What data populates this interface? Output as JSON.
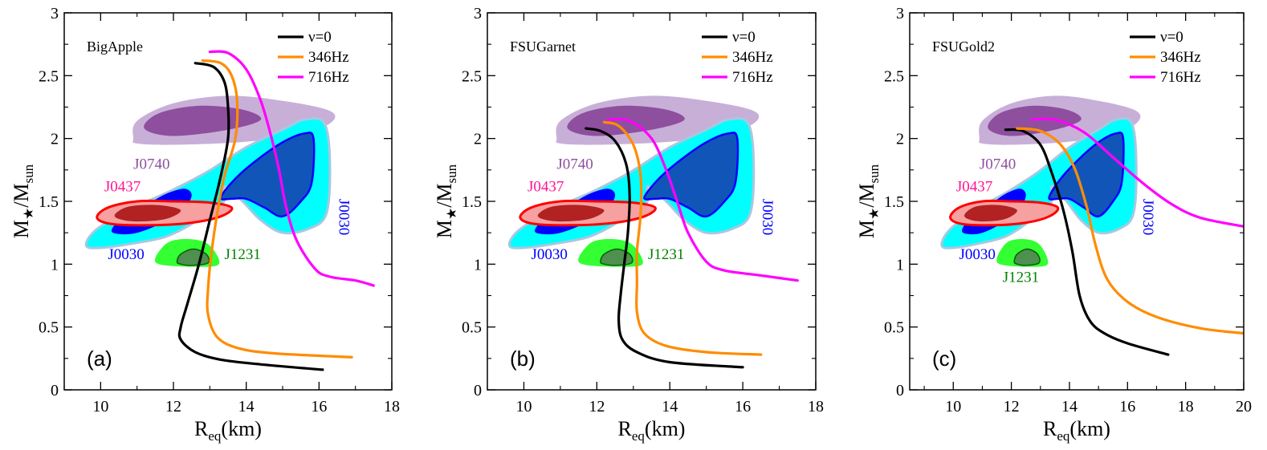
{
  "chart_data": [
    {
      "type": "line",
      "panel_label": "(a)",
      "model": "BigApple",
      "xlabel": "R_eq(km)",
      "ylabel": "M_star/M_sun",
      "xlim": [
        9,
        18
      ],
      "ylim": [
        0,
        3
      ],
      "xticks": [
        10,
        12,
        14,
        16,
        18
      ],
      "yticks": [
        0,
        0.5,
        1,
        1.5,
        2,
        2.5,
        3
      ],
      "legend": [
        "ν=0",
        "346Hz",
        "716Hz"
      ],
      "series": [
        {
          "name": "ν=0",
          "color": "#000000",
          "points": [
            [
              12.6,
              2.6
            ],
            [
              13.1,
              2.57
            ],
            [
              13.4,
              2.45
            ],
            [
              13.5,
              2.25
            ],
            [
              13.5,
              2.0
            ],
            [
              13.3,
              1.7
            ],
            [
              13.0,
              1.35
            ],
            [
              12.7,
              1.0
            ],
            [
              12.4,
              0.7
            ],
            [
              12.2,
              0.5
            ],
            [
              12.2,
              0.4
            ],
            [
              12.6,
              0.3
            ],
            [
              13.3,
              0.24
            ],
            [
              14.5,
              0.2
            ],
            [
              16.1,
              0.16
            ]
          ]
        },
        {
          "name": "346Hz",
          "color": "#ff8c00",
          "points": [
            [
              12.8,
              2.62
            ],
            [
              13.3,
              2.6
            ],
            [
              13.6,
              2.5
            ],
            [
              13.75,
              2.3
            ],
            [
              13.7,
              2.0
            ],
            [
              13.4,
              1.7
            ],
            [
              13.2,
              1.4
            ],
            [
              13.05,
              1.1
            ],
            [
              12.95,
              0.8
            ],
            [
              12.95,
              0.6
            ],
            [
              13.2,
              0.42
            ],
            [
              13.8,
              0.33
            ],
            [
              14.8,
              0.29
            ],
            [
              16.9,
              0.26
            ]
          ]
        },
        {
          "name": "716Hz",
          "color": "#ff00ff",
          "points": [
            [
              13.0,
              2.69
            ],
            [
              13.5,
              2.68
            ],
            [
              14.0,
              2.55
            ],
            [
              14.4,
              2.3
            ],
            [
              14.7,
              2.0
            ],
            [
              14.9,
              1.75
            ],
            [
              15.1,
              1.45
            ],
            [
              15.4,
              1.18
            ],
            [
              15.9,
              0.96
            ],
            [
              16.3,
              0.9
            ],
            [
              17.0,
              0.87
            ],
            [
              17.5,
              0.83
            ]
          ]
        }
      ]
    },
    {
      "type": "line",
      "panel_label": "(b)",
      "model": "FSUGarnet",
      "xlabel": "R_eq(km)",
      "ylabel": "M_star/M_sun",
      "xlim": [
        9,
        18
      ],
      "ylim": [
        0,
        3
      ],
      "xticks": [
        10,
        12,
        14,
        16,
        18
      ],
      "yticks": [
        0,
        0.5,
        1,
        1.5,
        2,
        2.5,
        3
      ],
      "legend": [
        "ν=0",
        "346Hz",
        "716Hz"
      ],
      "series": [
        {
          "name": "ν=0",
          "color": "#000000",
          "points": [
            [
              11.7,
              2.08
            ],
            [
              12.1,
              2.06
            ],
            [
              12.5,
              1.98
            ],
            [
              12.8,
              1.8
            ],
            [
              12.9,
              1.55
            ],
            [
              12.85,
              1.25
            ],
            [
              12.75,
              1.0
            ],
            [
              12.65,
              0.75
            ],
            [
              12.6,
              0.55
            ],
            [
              12.7,
              0.4
            ],
            [
              13.1,
              0.3
            ],
            [
              14.0,
              0.22
            ],
            [
              16.0,
              0.18
            ]
          ]
        },
        {
          "name": "346Hz",
          "color": "#ff8c00",
          "points": [
            [
              12.2,
              2.13
            ],
            [
              12.6,
              2.1
            ],
            [
              13.0,
              1.95
            ],
            [
              13.2,
              1.7
            ],
            [
              13.2,
              1.4
            ],
            [
              13.1,
              1.1
            ],
            [
              13.1,
              0.85
            ],
            [
              13.1,
              0.62
            ],
            [
              13.3,
              0.45
            ],
            [
              13.9,
              0.35
            ],
            [
              15.0,
              0.3
            ],
            [
              16.5,
              0.28
            ]
          ]
        },
        {
          "name": "716Hz",
          "color": "#ff00ff",
          "points": [
            [
              12.3,
              2.15
            ],
            [
              12.9,
              2.14
            ],
            [
              13.5,
              2.0
            ],
            [
              13.9,
              1.75
            ],
            [
              14.2,
              1.5
            ],
            [
              14.5,
              1.25
            ],
            [
              15.0,
              1.02
            ],
            [
              15.5,
              0.95
            ],
            [
              16.5,
              0.91
            ],
            [
              17.5,
              0.87
            ]
          ]
        }
      ]
    },
    {
      "type": "line",
      "panel_label": "(c)",
      "model": "FSUGold2",
      "xlabel": "R_eq(km)",
      "ylabel": "M_star/M_sun",
      "xlim": [
        8.5,
        20
      ],
      "ylim": [
        0,
        3
      ],
      "xticks": [
        10,
        12,
        14,
        16,
        18,
        20
      ],
      "yticks": [
        0,
        0.5,
        1,
        1.5,
        2,
        2.5,
        3
      ],
      "legend": [
        "ν=0",
        "346Hz",
        "716Hz"
      ],
      "series": [
        {
          "name": "ν=0",
          "color": "#000000",
          "points": [
            [
              11.8,
              2.07
            ],
            [
              12.4,
              2.06
            ],
            [
              13.0,
              1.95
            ],
            [
              13.4,
              1.72
            ],
            [
              13.8,
              1.42
            ],
            [
              14.1,
              1.1
            ],
            [
              14.35,
              0.75
            ],
            [
              14.7,
              0.55
            ],
            [
              15.2,
              0.45
            ],
            [
              16.0,
              0.37
            ],
            [
              17.4,
              0.28
            ]
          ]
        },
        {
          "name": "346Hz",
          "color": "#ff8c00",
          "points": [
            [
              12.2,
              2.08
            ],
            [
              13.0,
              2.06
            ],
            [
              13.7,
              1.95
            ],
            [
              14.2,
              1.75
            ],
            [
              14.6,
              1.45
            ],
            [
              14.9,
              1.15
            ],
            [
              15.3,
              0.88
            ],
            [
              16.0,
              0.7
            ],
            [
              17.0,
              0.58
            ],
            [
              18.5,
              0.49
            ],
            [
              20.0,
              0.45
            ]
          ]
        },
        {
          "name": "716Hz",
          "color": "#ff00ff",
          "points": [
            [
              12.7,
              2.15
            ],
            [
              13.5,
              2.15
            ],
            [
              14.5,
              2.05
            ],
            [
              15.5,
              1.85
            ],
            [
              16.5,
              1.65
            ],
            [
              17.5,
              1.48
            ],
            [
              18.5,
              1.37
            ],
            [
              20.0,
              1.3
            ]
          ]
        }
      ]
    }
  ],
  "constraints": {
    "j0740": {
      "label": "J0740",
      "outer": [
        [
          10.9,
          2.0
        ],
        [
          11.0,
          2.14
        ],
        [
          12.0,
          2.28
        ],
        [
          13.5,
          2.34
        ],
        [
          15.0,
          2.3
        ],
        [
          16.3,
          2.22
        ],
        [
          16.3,
          2.12
        ],
        [
          15.3,
          2.02
        ],
        [
          13.8,
          1.97
        ],
        [
          12.0,
          1.95
        ],
        [
          11.0,
          1.96
        ]
      ],
      "inner": [
        [
          11.2,
          2.08
        ],
        [
          11.6,
          2.2
        ],
        [
          12.7,
          2.26
        ],
        [
          13.9,
          2.23
        ],
        [
          14.4,
          2.15
        ],
        [
          13.5,
          2.07
        ],
        [
          12.0,
          2.02
        ]
      ]
    },
    "j0030_cyan": [
      [
        9.6,
        1.15
      ],
      [
        9.9,
        1.28
      ],
      [
        10.9,
        1.45
      ],
      [
        11.9,
        1.58
      ],
      [
        12.9,
        1.73
      ],
      [
        14.0,
        1.93
      ],
      [
        15.0,
        2.07
      ],
      [
        15.6,
        2.15
      ],
      [
        16.15,
        2.12
      ],
      [
        16.3,
        1.8
      ],
      [
        16.2,
        1.4
      ],
      [
        15.7,
        1.28
      ],
      [
        15.0,
        1.25
      ],
      [
        14.4,
        1.35
      ],
      [
        13.9,
        1.5
      ],
      [
        13.4,
        1.62
      ],
      [
        13.35,
        1.48
      ],
      [
        12.5,
        1.32
      ],
      [
        11.8,
        1.22
      ],
      [
        11.0,
        1.17
      ],
      [
        10.0,
        1.13
      ]
    ],
    "j0030_blue_lower": [
      [
        10.3,
        1.27
      ],
      [
        10.6,
        1.37
      ],
      [
        11.3,
        1.48
      ],
      [
        11.8,
        1.56
      ],
      [
        12.3,
        1.6
      ],
      [
        12.5,
        1.55
      ],
      [
        12.3,
        1.45
      ],
      [
        11.7,
        1.33
      ],
      [
        11.0,
        1.25
      ],
      [
        10.5,
        1.24
      ]
    ],
    "j0030_blue_upper": [
      [
        13.3,
        1.53
      ],
      [
        13.7,
        1.68
      ],
      [
        14.3,
        1.83
      ],
      [
        15.0,
        1.97
      ],
      [
        15.6,
        2.04
      ],
      [
        15.85,
        2.0
      ],
      [
        15.8,
        1.65
      ],
      [
        15.5,
        1.5
      ],
      [
        15.0,
        1.38
      ],
      [
        14.5,
        1.45
      ],
      [
        14.0,
        1.52
      ],
      [
        13.6,
        1.52
      ]
    ],
    "j0030_label": "J0030",
    "j0437": {
      "label": "J0437",
      "outer": [
        [
          9.9,
          1.37
        ],
        [
          10.2,
          1.45
        ],
        [
          11.0,
          1.5
        ],
        [
          12.0,
          1.5
        ],
        [
          13.0,
          1.49
        ],
        [
          13.6,
          1.45
        ],
        [
          13.3,
          1.38
        ],
        [
          12.5,
          1.33
        ],
        [
          11.4,
          1.31
        ],
        [
          10.3,
          1.32
        ]
      ],
      "inner": [
        [
          10.4,
          1.4
        ],
        [
          10.8,
          1.46
        ],
        [
          11.6,
          1.47
        ],
        [
          12.2,
          1.43
        ],
        [
          11.8,
          1.36
        ],
        [
          11.0,
          1.34
        ],
        [
          10.5,
          1.36
        ]
      ]
    },
    "j1231": {
      "label": "J1231",
      "outer": [
        [
          11.5,
          1.02
        ],
        [
          11.6,
          1.1
        ],
        [
          11.9,
          1.18
        ],
        [
          12.4,
          1.2
        ],
        [
          12.9,
          1.17
        ],
        [
          13.2,
          1.07
        ],
        [
          13.2,
          0.99
        ],
        [
          12.5,
          0.98
        ],
        [
          11.8,
          0.99
        ]
      ],
      "inner": [
        [
          12.1,
          1.02
        ],
        [
          12.2,
          1.08
        ],
        [
          12.55,
          1.12
        ],
        [
          12.9,
          1.08
        ],
        [
          12.95,
          1.01
        ],
        [
          12.5,
          0.99
        ],
        [
          12.2,
          1.0
        ]
      ]
    }
  },
  "annotations": {
    "j0740_label_pos": {
      "x": 10.9,
      "y": 1.76
    },
    "j0437_label_pos": {
      "x": 10.1,
      "y": 1.58
    },
    "j0030_left_label_pos": {
      "x": 10.2,
      "y": 1.04
    },
    "j1231_label_pos_ab": {
      "x": 13.4,
      "y": 1.04
    },
    "j1231_label_pos_c": {
      "x": 11.7,
      "y": 0.86
    },
    "j0030_right_label_pos": {
      "x": 16.55,
      "y": 1.52
    }
  }
}
